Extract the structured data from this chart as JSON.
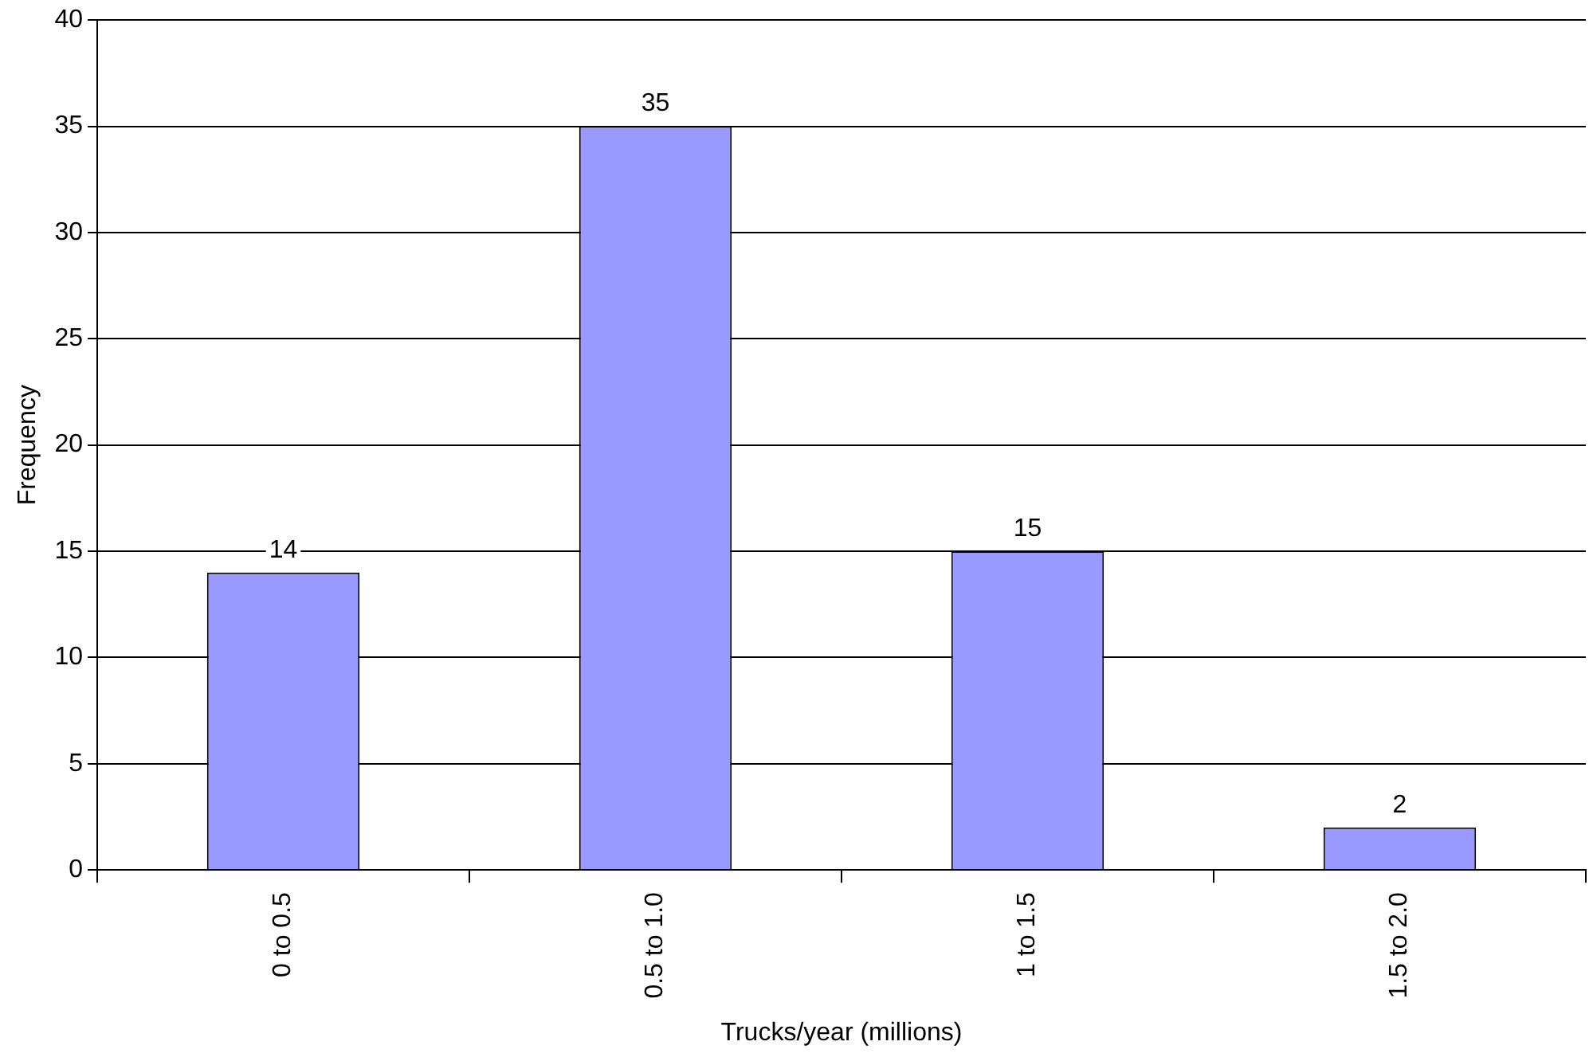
{
  "chart_data": {
    "type": "bar",
    "xlabel": "Trucks/year (millions)",
    "ylabel": "Frequency",
    "categories": [
      "0 to 0.5",
      "0.5 to 1.0",
      "1 to 1.5",
      "1.5 to 2.0"
    ],
    "values": [
      14,
      35,
      15,
      2
    ],
    "color": "#9999ff",
    "data_labels": true,
    "ylim": [
      0,
      40
    ],
    "yticks": [
      0,
      5,
      10,
      15,
      20,
      25,
      30,
      35,
      40
    ],
    "grid": "y",
    "legend": false
  }
}
